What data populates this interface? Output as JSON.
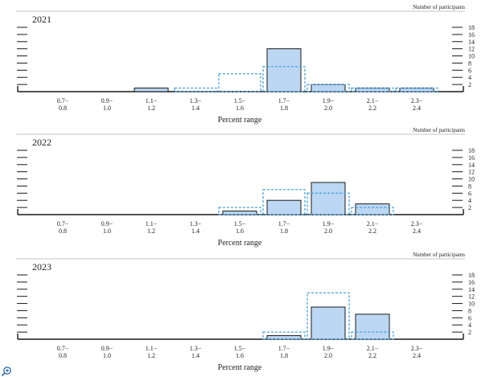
{
  "colors": {
    "bar_fill": "#bcd7f3",
    "bar_stroke": "#1a1a1a",
    "prior_outline": "#4aa3df",
    "axis": "#1a1a1a",
    "text": "#222222"
  },
  "icons": {
    "zoom": "zoom-in-icon"
  },
  "chart_data": [
    {
      "type": "bar",
      "title": "2021",
      "xlabel": "Percent range",
      "ylabel": "Number of participants",
      "categories": [
        "0.7−\n0.8",
        "0.9−\n1.0",
        "1.1−\n1.2",
        "1.3−\n1.4",
        "1.5−\n1.6",
        "1.7−\n1.8",
        "1.9−\n2.0",
        "2.1−\n2.2",
        "2.3−\n2.4"
      ],
      "yticks": [
        2,
        4,
        6,
        8,
        10,
        12,
        14,
        16,
        18
      ],
      "ylim": [
        0,
        18
      ],
      "series": [
        {
          "values": [
            0,
            0,
            1,
            0,
            0,
            12,
            2,
            1,
            1
          ]
        },
        {
          "style": "dashed-outline",
          "values": [
            0,
            0,
            0,
            1,
            5,
            7,
            2,
            1,
            1
          ]
        }
      ]
    },
    {
      "type": "bar",
      "title": "2022",
      "xlabel": "Percent range",
      "ylabel": "Number of participants",
      "categories": [
        "0.7−\n0.8",
        "0.9−\n1.0",
        "1.1−\n1.2",
        "1.3−\n1.4",
        "1.5−\n1.6",
        "1.7−\n1.8",
        "1.9−\n2.0",
        "2.1−\n2.2",
        "2.3−\n2.4"
      ],
      "yticks": [
        2,
        4,
        6,
        8,
        10,
        12,
        14,
        16,
        18
      ],
      "ylim": [
        0,
        18
      ],
      "series": [
        {
          "values": [
            0,
            0,
            0,
            0,
            1,
            4,
            9,
            3,
            0
          ]
        },
        {
          "style": "dashed-outline",
          "values": [
            0,
            0,
            0,
            0,
            2,
            7,
            6,
            2,
            0
          ]
        }
      ]
    },
    {
      "type": "bar",
      "title": "2023",
      "xlabel": "Percent range",
      "ylabel": "Number of participants",
      "categories": [
        "0.7−\n0.8",
        "0.9−\n1.0",
        "1.1−\n1.2",
        "1.3−\n1.4",
        "1.5−\n1.6",
        "1.7−\n1.8",
        "1.9−\n2.0",
        "2.1−\n2.2",
        "2.3−\n2.4"
      ],
      "yticks": [
        2,
        4,
        6,
        8,
        10,
        12,
        14,
        16,
        18
      ],
      "ylim": [
        0,
        18
      ],
      "series": [
        {
          "values": [
            0,
            0,
            0,
            0,
            0,
            1,
            9,
            7,
            0
          ]
        },
        {
          "style": "dashed-outline",
          "values": [
            0,
            0,
            0,
            0,
            0,
            2,
            13,
            2,
            0
          ]
        }
      ]
    }
  ]
}
